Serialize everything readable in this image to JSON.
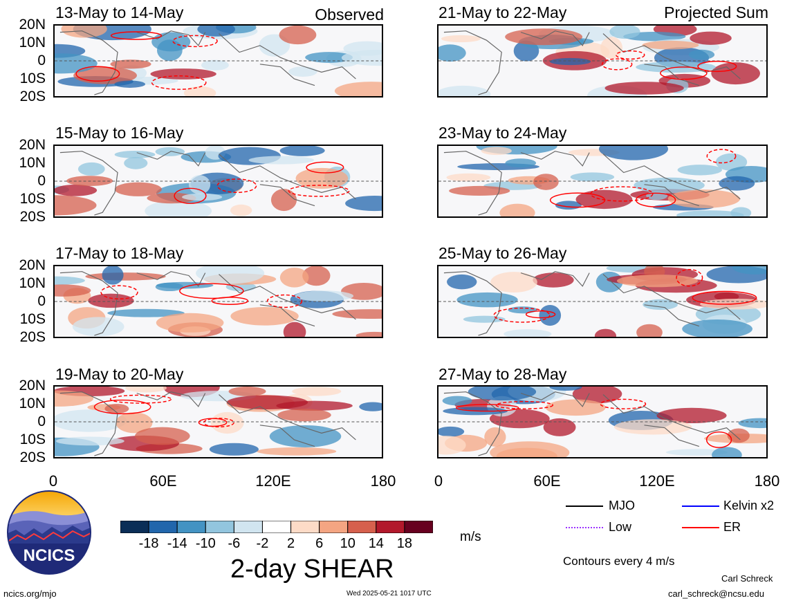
{
  "panels": [
    {
      "title": "13-May to 14-May",
      "tag": "Observed"
    },
    {
      "title": "21-May to 22-May",
      "tag": "Projected Sum"
    },
    {
      "title": "15-May to 16-May",
      "tag": ""
    },
    {
      "title": "23-May to 24-May",
      "tag": ""
    },
    {
      "title": "17-May to 18-May",
      "tag": ""
    },
    {
      "title": "25-May to 26-May",
      "tag": ""
    },
    {
      "title": "19-May to 20-May",
      "tag": ""
    },
    {
      "title": "27-May to 28-May",
      "tag": ""
    }
  ],
  "lat_labels": [
    "20N",
    "10N",
    "0",
    "10S",
    "20S"
  ],
  "lon_labels": [
    "0",
    "60E",
    "120E",
    "180"
  ],
  "colorbar": {
    "ticks": [
      "-18",
      "-14",
      "-10",
      "-6",
      "-2",
      "2",
      "6",
      "10",
      "14",
      "18"
    ],
    "colors": [
      "#0b2e57",
      "#2166ac",
      "#4393c3",
      "#92c5de",
      "#d1e5f0",
      "#ffffff",
      "#fddbc7",
      "#f4a582",
      "#d6604d",
      "#b2182b",
      "#67001f"
    ],
    "units": "m/s",
    "title": "2-day SHEAR"
  },
  "legend": {
    "items": [
      {
        "label": "MJO",
        "color": "#000000"
      },
      {
        "label": "Kelvin x2",
        "color": "#0000ff"
      },
      {
        "label": "Low",
        "color": "#9b30ff"
      },
      {
        "label": "ER",
        "color": "#ff0000"
      }
    ],
    "contours_note": "Contours every 4 m/s"
  },
  "logo_text": "NCICS",
  "footer": {
    "site": "ncics.org/mjo",
    "timestamp": "Wed 2025-05-21 1017 UTC",
    "author": "Carl Schreck",
    "email": "carl_schreck@ncsu.edu"
  }
}
